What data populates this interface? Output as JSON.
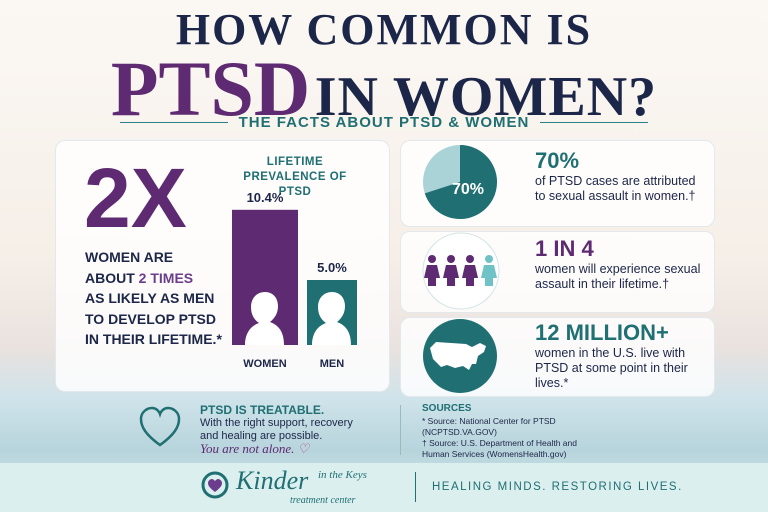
{
  "header": {
    "title_line1": "HOW COMMON IS",
    "title_highlight": "PTSD",
    "title_rest": "IN WOMEN?",
    "subtitle": "THE FACTS ABOUT PTSD & WOMEN"
  },
  "left_panel": {
    "big_stat": "2X",
    "body": {
      "line1": "WOMEN ARE",
      "line2_start": "ABOUT",
      "line2_highlight": "2 TIMES",
      "line3": "AS LIKELY AS MEN",
      "line4": "TO DEVELOP PTSD",
      "line5": "IN THEIR LIFETIME.*"
    }
  },
  "prevalence_chart": {
    "type": "bar",
    "title": "LIFETIME PREVALENCE OF PTSD",
    "categories": [
      "WOMEN",
      "MEN"
    ],
    "values": [
      10.4,
      5.0
    ],
    "value_labels": [
      "10.4%",
      "5.0%"
    ],
    "colors": [
      "#5e2a72",
      "#1f6f73"
    ]
  },
  "facts": [
    {
      "stat": "70%",
      "text": "of PTSD cases are attributed to sexual assault in women.†",
      "pie": {
        "type": "pie",
        "values": [
          70
        ],
        "value_labels": [
          "70%"
        ],
        "color": "#1f6f73"
      }
    },
    {
      "stat": "1 IN 4",
      "text": "women will experience sexual assault in their lifetime.†"
    },
    {
      "stat": "12 MILLION+",
      "text": "women in the U.S. live with PTSD at some point in their lives.*"
    }
  ],
  "bottom": {
    "treatable_title": "PTSD IS TREATABLE.",
    "treatable_text": "With the right support, recovery and healing are possible.",
    "tagline": "You are not alone.",
    "sources_title": "SOURCES",
    "sources": [
      "* Source: National Center for PTSD (NCPTSD.VA.GOV)",
      "† Source: U.S. Department of Health and Human Services (WomensHealth.gov)"
    ]
  },
  "footer": {
    "brand": "Kinder",
    "brand_small": "in the Keys",
    "brand_sub": "treatment center",
    "slogan": "HEALING MINDS. RESTORING LIVES."
  }
}
